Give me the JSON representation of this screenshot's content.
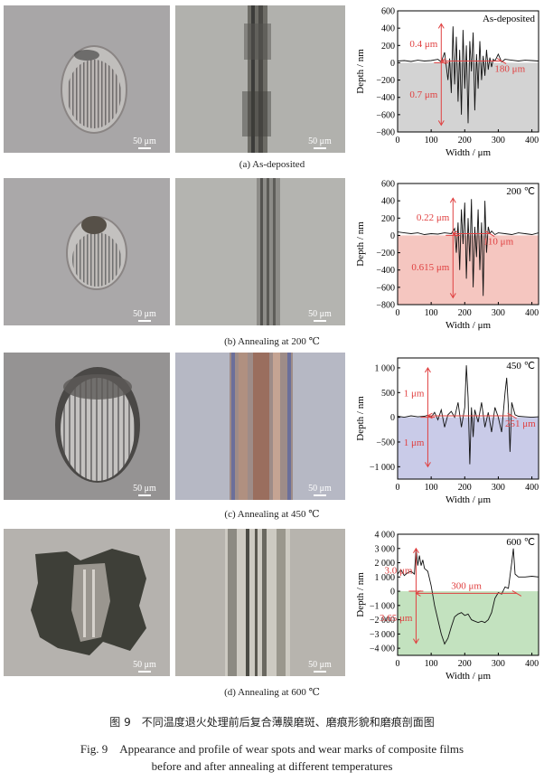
{
  "rows": [
    {
      "id": "a",
      "subcaption": "(a) As-deposited",
      "scale_label_1": "50 μm",
      "scale_label_2": "50 μm",
      "chart_data": {
        "type": "line",
        "corner_label": "As-deposited",
        "xlabel": "Width / μm",
        "ylabel": "Depth / nm",
        "xlim": [
          0,
          420
        ],
        "ylim": [
          -800,
          600
        ],
        "xticks": [
          0,
          100,
          200,
          300,
          400
        ],
        "yticks": [
          600,
          400,
          200,
          0,
          -200,
          -400,
          -600,
          -800
        ],
        "ytick_labels": [
          "600",
          "400",
          "200",
          "0",
          "−200",
          "−400",
          "−600",
          "−800"
        ],
        "fill_color": "#d3d3d3",
        "annotation_color": "#e04040",
        "annotations": {
          "top": "0.4 μm",
          "bottom": "0.7 μm",
          "width": "180 μm"
        },
        "marker_x": 130,
        "marker_top": 450,
        "marker_bottom": -720,
        "width_span": [
          130,
          310
        ],
        "width_y": 20,
        "profile_x": [
          0,
          20,
          40,
          60,
          80,
          100,
          120,
          130,
          140,
          150,
          155,
          160,
          165,
          170,
          175,
          180,
          185,
          190,
          195,
          200,
          205,
          210,
          215,
          220,
          225,
          230,
          235,
          240,
          245,
          250,
          255,
          260,
          265,
          270,
          275,
          280,
          285,
          290,
          300,
          310,
          320,
          340,
          360,
          380,
          400,
          420
        ],
        "profile_y": [
          20,
          25,
          15,
          30,
          20,
          25,
          40,
          10,
          120,
          -200,
          50,
          -350,
          420,
          -250,
          300,
          -450,
          150,
          -600,
          380,
          -300,
          200,
          -700,
          250,
          -100,
          350,
          -550,
          100,
          -300,
          250,
          -200,
          80,
          -150,
          150,
          -80,
          60,
          -50,
          40,
          20,
          100,
          10,
          40,
          30,
          20,
          30,
          25,
          20
        ]
      }
    },
    {
      "id": "b",
      "subcaption": "(b) Annealing at 200 ℃",
      "scale_label_1": "50 μm",
      "scale_label_2": "50 μm",
      "chart_data": {
        "type": "line",
        "corner_label": "200 ℃",
        "xlabel": "Width / μm",
        "ylabel": "Depth / nm",
        "xlim": [
          0,
          420
        ],
        "ylim": [
          -800,
          600
        ],
        "xticks": [
          0,
          100,
          200,
          300,
          400
        ],
        "yticks": [
          600,
          400,
          200,
          0,
          -200,
          -400,
          -600,
          -800
        ],
        "ytick_labels": [
          "600",
          "400",
          "200",
          "0",
          "−200",
          "−400",
          "−600",
          "−800"
        ],
        "fill_color": "#f5c6c0",
        "annotation_color": "#e04040",
        "annotations": {
          "top": "0.22 μm",
          "bottom": "0.615 μm",
          "width": "110 μm"
        },
        "marker_x": 165,
        "marker_top": 430,
        "marker_bottom": -720,
        "width_span": [
          165,
          275
        ],
        "width_y": 20,
        "profile_x": [
          0,
          20,
          40,
          60,
          80,
          100,
          120,
          140,
          160,
          170,
          175,
          180,
          185,
          190,
          195,
          200,
          205,
          210,
          215,
          220,
          225,
          230,
          235,
          240,
          245,
          250,
          255,
          260,
          265,
          270,
          275,
          280,
          290,
          300,
          320,
          340,
          360,
          380,
          400,
          420
        ],
        "profile_y": [
          40,
          30,
          20,
          30,
          10,
          20,
          15,
          30,
          20,
          80,
          -200,
          150,
          -400,
          300,
          -100,
          380,
          -500,
          200,
          -300,
          420,
          -600,
          100,
          -250,
          300,
          -400,
          150,
          -700,
          400,
          -200,
          100,
          20,
          50,
          10,
          30,
          20,
          10,
          30,
          20,
          10,
          30
        ]
      }
    },
    {
      "id": "c",
      "subcaption": "(c) Annealing at 450 ℃",
      "scale_label_1": "50 μm",
      "scale_label_2": "50 μm",
      "chart_data": {
        "type": "line",
        "corner_label": "450 ℃",
        "xlabel": "Width / μm",
        "ylabel": "Depth / nm",
        "xlim": [
          0,
          420
        ],
        "ylim": [
          -1250,
          1200
        ],
        "xticks": [
          0,
          100,
          200,
          300,
          400
        ],
        "yticks": [
          1000,
          500,
          0,
          -500,
          -1000
        ],
        "ytick_labels": [
          "1 000",
          "500",
          "0",
          "−500",
          "−1 000"
        ],
        "fill_color": "#c9cbe8",
        "annotation_color": "#e04040",
        "annotations": {
          "top": "1 μm",
          "bottom": "1 μm",
          "width": "251 μm"
        },
        "marker_x": 90,
        "marker_top": 1000,
        "marker_bottom": -1000,
        "width_span": [
          90,
          341
        ],
        "width_y": 30,
        "profile_x": [
          0,
          20,
          40,
          60,
          80,
          90,
          100,
          110,
          120,
          130,
          140,
          150,
          160,
          170,
          180,
          190,
          200,
          205,
          210,
          215,
          220,
          225,
          230,
          240,
          250,
          260,
          270,
          280,
          290,
          300,
          310,
          320,
          325,
          330,
          335,
          340,
          350,
          360,
          380,
          400,
          420
        ],
        "profile_y": [
          20,
          0,
          30,
          10,
          20,
          40,
          0,
          100,
          -50,
          150,
          -200,
          50,
          120,
          0,
          300,
          -200,
          200,
          1050,
          400,
          -950,
          200,
          -400,
          150,
          -100,
          300,
          -200,
          100,
          -300,
          200,
          0,
          -300,
          500,
          800,
          200,
          -700,
          300,
          50,
          20,
          10,
          0,
          10
        ]
      }
    },
    {
      "id": "d",
      "subcaption": "(d) Annealing at 600 ℃",
      "scale_label_1": "50 μm",
      "scale_label_2": "50 μm",
      "chart_data": {
        "type": "line",
        "corner_label": "600 ℃",
        "xlabel": "Width / μm",
        "ylabel": "Depth / nm",
        "xlim": [
          0,
          420
        ],
        "ylim": [
          -4500,
          4000
        ],
        "xticks": [
          0,
          100,
          200,
          300,
          400
        ],
        "yticks": [
          4000,
          3000,
          2000,
          1000,
          0,
          -1000,
          -2000,
          -3000,
          -4000
        ],
        "ytick_labels": [
          "4 000",
          "3 000",
          "2 000",
          "1 000",
          "0",
          "−1 000",
          "−2 000",
          "−3 000",
          "−4 000"
        ],
        "fill_color": "#c3e2bf",
        "annotation_color": "#e04040",
        "annotations": {
          "top": "3.0 μm",
          "bottom": "3.65 μm",
          "width": "300 μm"
        },
        "marker_x": 55,
        "marker_top": 3000,
        "marker_bottom": -3650,
        "width_span": [
          55,
          355
        ],
        "width_y": -150,
        "profile_x": [
          0,
          10,
          20,
          30,
          40,
          50,
          55,
          60,
          65,
          70,
          75,
          80,
          90,
          100,
          110,
          120,
          130,
          140,
          150,
          160,
          170,
          180,
          190,
          200,
          210,
          220,
          230,
          240,
          250,
          260,
          270,
          280,
          290,
          300,
          310,
          320,
          330,
          340,
          345,
          350,
          360,
          380,
          400,
          420
        ],
        "profile_y": [
          1200,
          1500,
          1100,
          1300,
          1400,
          1200,
          3000,
          1800,
          2500,
          1800,
          2200,
          1600,
          1400,
          400,
          -1000,
          -2000,
          -3000,
          -3700,
          -3300,
          -2500,
          -1800,
          -1600,
          -1500,
          -1700,
          -1600,
          -2000,
          -2100,
          -2200,
          -2100,
          -2200,
          -2000,
          -1500,
          -500,
          -100,
          -200,
          300,
          200,
          2000,
          3000,
          1200,
          1000,
          1000,
          1050,
          1000
        ]
      }
    }
  ],
  "caption_cn": "图 9　不同温度退火处理前后复合薄膜磨斑、磨痕形貌和磨痕剖面图",
  "caption_en_line1": "Fig. 9　Appearance and profile of wear spots and wear marks of composite films",
  "caption_en_line2": "before and after annealing at different temperatures"
}
